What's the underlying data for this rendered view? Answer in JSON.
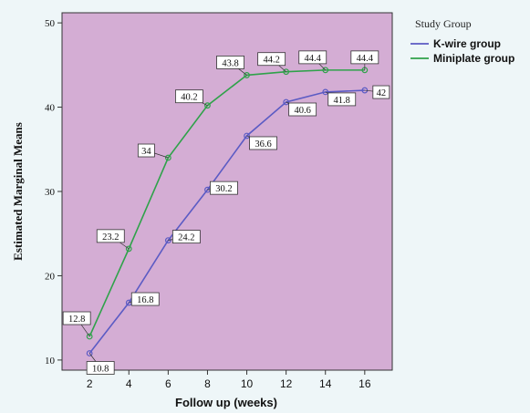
{
  "chart_data": {
    "type": "line",
    "xlabel": "Follow up (weeks)",
    "ylabel": "Estimated Marginal Means",
    "x": [
      2,
      4,
      6,
      8,
      10,
      12,
      14,
      16
    ],
    "xlim": [
      0.6,
      17.4
    ],
    "ylim": [
      8.8,
      51.2
    ],
    "xticks": [
      2,
      4,
      6,
      8,
      10,
      12,
      14,
      16
    ],
    "yticks": [
      10,
      20,
      30,
      40,
      50
    ],
    "grid": false,
    "legend_placement": "right",
    "legend_title": "Study Group",
    "plot_bg": "#d4add4",
    "series": [
      {
        "name": "K-wire group",
        "color": "#5b5bc4",
        "values": [
          10.8,
          16.8,
          24.2,
          30.2,
          36.6,
          40.6,
          41.8,
          42
        ],
        "labels": [
          "10.8",
          "16.8",
          "24.2",
          "30.2",
          "36.6",
          "40.6",
          "41.8",
          "42"
        ]
      },
      {
        "name": "Miniplate group",
        "color": "#2fa24a",
        "values": [
          12.8,
          23.2,
          34,
          40.2,
          43.8,
          44.2,
          44.4,
          44.4
        ],
        "labels": [
          "12.8",
          "23.2",
          "34",
          "40.2",
          "43.8",
          "44.2",
          "44.4",
          "44.4"
        ]
      }
    ]
  }
}
